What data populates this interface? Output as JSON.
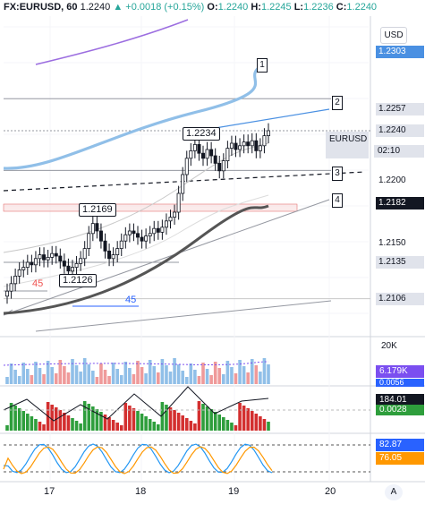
{
  "header": {
    "symbol": "FX:EURUSD, 60",
    "last": "1.2240",
    "change": "+0.0018 (+0.15%)",
    "o_label": "O:",
    "o_val": "1.2240",
    "h_label": "H:",
    "h_val": "1.2245",
    "l_label": "L:",
    "l_val": "1.2236",
    "c_label": "C:",
    "c_val": "1.2240"
  },
  "currency_button": "USD",
  "auto_button": "A",
  "price_tags": [
    {
      "text": "1.2303",
      "price": 1.2303,
      "bg": "#4a90e2",
      "fg": "#ffffff"
    },
    {
      "text": "1.2257",
      "price": 1.2257,
      "bg": "#e0e3eb",
      "fg": "#131722"
    },
    {
      "text": "1.2240",
      "price": 1.224,
      "bg": "#e0e3eb",
      "fg": "#131722"
    },
    {
      "text": "1.2200",
      "price": 1.22,
      "bg": "none",
      "fg": "#131722"
    },
    {
      "text": "1.2182",
      "price": 1.2182,
      "bg": "#131722",
      "fg": "#ffffff"
    },
    {
      "text": "1.2150",
      "price": 1.215,
      "bg": "none",
      "fg": "#131722"
    },
    {
      "text": "1.2135",
      "price": 1.2135,
      "bg": "#e0e3eb",
      "fg": "#131722"
    },
    {
      "text": "1.2106",
      "price": 1.2106,
      "bg": "#e0e3eb",
      "fg": "#131722"
    }
  ],
  "eurusd_tag": "EURUSD",
  "countdown": "02:10",
  "line_labels": [
    "1",
    "2",
    "3",
    "4"
  ],
  "annotations": {
    "high_label": "1.2234",
    "mid_label": "1.2169",
    "low_label": "1.2126",
    "angle_45_red": "45",
    "angle_45_blue": "45"
  },
  "volume_pane": {
    "axis_label": "20K",
    "tag1": "6.179K",
    "tag2": "0.0056"
  },
  "macd_pane": {
    "tag1": "184.01",
    "tag2": "0.0028"
  },
  "stoch_pane": {
    "tag1": "82.87",
    "tag2": "76.05"
  },
  "time_axis": [
    "17",
    "18",
    "19",
    "20"
  ],
  "colors": {
    "up": "#26a69a",
    "down": "#ef5350",
    "ma_blue": "#90bfe8",
    "ma_purple": "#9c6ee0",
    "ma_dark": "#555555",
    "tag_blue": "#4a90e2",
    "vol_purple": "#7b4ff0",
    "stoch_blue": "#2196f3",
    "stoch_orange": "#ff9800",
    "macd_green": "#2e9e3c",
    "macd_red": "#d32f2f"
  },
  "chart_data": {
    "type": "candlestick",
    "symbol": "FX:EURUSD",
    "timeframe": "60",
    "ylim": [
      1.208,
      1.233
    ],
    "x_ticks": [
      "17",
      "18",
      "19",
      "20"
    ],
    "last_price": 1.224,
    "ohlc_last": {
      "open": 1.224,
      "high": 1.2245,
      "low": 1.2236,
      "close": 1.224
    },
    "close_series": [
      1.2112,
      1.2118,
      1.2124,
      1.2129,
      1.2131,
      1.2135,
      1.2133,
      1.2138,
      1.2141,
      1.2137,
      1.2139,
      1.2142,
      1.214,
      1.2136,
      1.2132,
      1.2128,
      1.2131,
      1.2134,
      1.2138,
      1.2146,
      1.2158,
      1.2166,
      1.216,
      1.2152,
      1.2144,
      1.2138,
      1.2141,
      1.2146,
      1.2152,
      1.2157,
      1.216,
      1.2158,
      1.2155,
      1.2152,
      1.2156,
      1.2158,
      1.2162,
      1.2159,
      1.2163,
      1.2168,
      1.2171,
      1.2175,
      1.219,
      1.2205,
      1.2218,
      1.2224,
      1.2229,
      1.2222,
      1.2218,
      1.2225,
      1.222,
      1.2214,
      1.2208,
      1.2216,
      1.2226,
      1.223,
      1.2225,
      1.2228,
      1.2231,
      1.2228,
      1.2232,
      1.2224,
      1.2228,
      1.2236,
      1.224
    ],
    "levels": {
      "line_1": 1.2303,
      "line_2": 1.2257,
      "line_3": 1.22,
      "line_4": 1.2182,
      "high": 1.2234,
      "swing": 1.2169,
      "low": 1.2126,
      "support": 1.2135,
      "base": 1.2106
    },
    "indicators": {
      "volume": 6179,
      "volume_axis_max": "20K",
      "macd": [
        0.0056,
        0.0028
      ],
      "macd_value": 184.01,
      "stochastic": [
        82.87,
        76.05
      ]
    }
  }
}
